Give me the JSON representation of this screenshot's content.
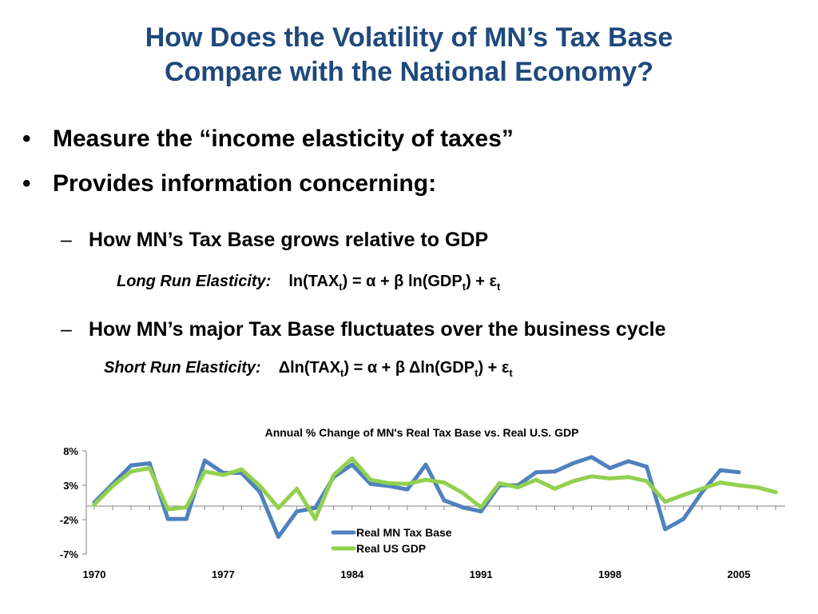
{
  "slide": {
    "title_line1": "How Does the Volatility of MN’s Tax Base",
    "title_line2": "Compare with the National Economy?",
    "bullet_symbol": "•",
    "dash_symbol": "–",
    "bullets": [
      "Measure the “income elasticity of taxes”",
      "Provides information concerning:"
    ],
    "sub_bullets": [
      "How MN’s Tax Base grows relative to GDP",
      "How MN’s major Tax Base fluctuates over the business cycle"
    ],
    "long_run": {
      "label": "Long Run Elasticity:",
      "p1": "ln(TAX",
      "s1": "t",
      "p2": ") = α + β ln(GDP",
      "s2": "t",
      "p3": ") + ε",
      "s3": "t"
    },
    "short_run": {
      "label": "Short Run Elasticity:",
      "p1": "Δln(TAX",
      "s1": "t",
      "p2": ") = α + β Δln(GDP",
      "s2": "t",
      "p3": ") + ε",
      "s3": "t"
    }
  },
  "colors": {
    "title": "#1f497d",
    "mn": "#4f81bd",
    "us": "#92d050",
    "axis": "#868686"
  },
  "chart_data": {
    "type": "line",
    "title": "Annual % Change of MN's Real Tax Base vs. Real U.S. GDP",
    "x": [
      1970,
      1971,
      1972,
      1973,
      1974,
      1975,
      1976,
      1977,
      1978,
      1979,
      1980,
      1981,
      1982,
      1983,
      1984,
      1985,
      1986,
      1987,
      1988,
      1989,
      1990,
      1991,
      1992,
      1993,
      1994,
      1995,
      1996,
      1997,
      1998,
      1999,
      2000,
      2001,
      2002,
      2003,
      2004,
      2005,
      2006,
      2007
    ],
    "ylim": [
      -7,
      8
    ],
    "yticks": [
      -7,
      -2,
      3,
      8
    ],
    "ytick_labels": [
      "-7%",
      "-2%",
      "3%",
      "8%"
    ],
    "xticks": [
      1970,
      1977,
      1984,
      1991,
      1998,
      2005
    ],
    "xtick_labels": [
      "1970",
      "1977",
      "1984",
      "1991",
      "1998",
      "2005"
    ],
    "legend_position": "bottom-center",
    "series": [
      {
        "name": "Real MN Tax Base",
        "color": "#4f81bd",
        "values": [
          0.5,
          3.2,
          5.9,
          6.2,
          -1.9,
          -1.9,
          6.6,
          4.8,
          4.8,
          2.0,
          -4.5,
          -0.8,
          -0.3,
          4.2,
          6.0,
          3.2,
          2.9,
          2.4,
          6.0,
          0.8,
          -0.2,
          -0.8,
          3.0,
          3.0,
          4.9,
          5.0,
          6.2,
          7.1,
          5.5,
          6.5,
          5.7,
          -3.4,
          -1.9,
          2.0,
          5.2,
          4.9,
          null,
          null
        ]
      },
      {
        "name": "Real US GDP",
        "color": "#92d050",
        "values": [
          0.2,
          2.9,
          5.0,
          5.5,
          -0.5,
          -0.2,
          5.0,
          4.5,
          5.3,
          2.9,
          -0.3,
          2.5,
          -1.9,
          4.5,
          6.9,
          3.8,
          3.3,
          3.2,
          3.8,
          3.4,
          1.9,
          -0.2,
          3.3,
          2.7,
          3.8,
          2.5,
          3.6,
          4.3,
          4.0,
          4.2,
          3.6,
          0.6,
          1.6,
          2.5,
          3.4,
          3.0,
          2.7,
          2.0
        ]
      }
    ]
  }
}
